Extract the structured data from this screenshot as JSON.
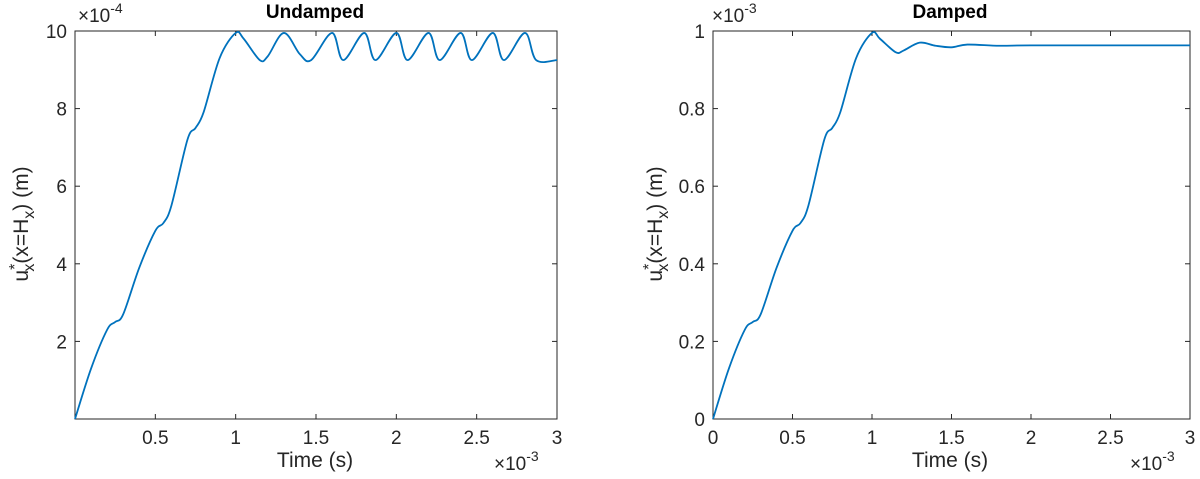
{
  "figure": {
    "colors": {
      "line": "#0072BD",
      "axes": "#262626",
      "tick": "#262626"
    }
  },
  "chart_data": [
    {
      "type": "line",
      "title": "Undamped",
      "xlabel": "Time (s)",
      "ylabel_parts": {
        "base": "u",
        "sup": "*",
        "sub": "x",
        "mid": "(x=H",
        "sub2": "x",
        "end": ") (m)"
      },
      "xlim": [
        0,
        0.003
      ],
      "ylim": [
        0,
        0.001
      ],
      "x_multiplier": "×10",
      "x_exponent": "-3",
      "y_multiplier": "×10",
      "y_exponent": "-4",
      "xticks": [
        0.0005,
        0.001,
        0.0015,
        0.002,
        0.0025,
        0.003
      ],
      "xtick_labels": [
        "0.5",
        "1",
        "1.5",
        "2",
        "2.5",
        "3"
      ],
      "yticks": [
        0.0002,
        0.0004,
        0.0006,
        0.0008,
        0.001
      ],
      "ytick_labels": [
        "2",
        "4",
        "6",
        "8",
        "10"
      ],
      "grid": false,
      "series": [
        {
          "x": [
            0,
            0.0001,
            0.0002,
            0.00025,
            0.0003,
            0.0004,
            0.0005,
            0.00055,
            0.0006,
            0.0007,
            0.00075,
            0.0008,
            0.0009,
            0.001,
            0.00105,
            0.00115,
            0.0012,
            0.0013,
            0.0014,
            0.00147,
            0.0016,
            0.00167,
            0.0018,
            0.00187,
            0.002,
            0.00207,
            0.0022,
            0.00227,
            0.0024,
            0.00247,
            0.0026,
            0.00267,
            0.0028,
            0.00287,
            0.003
          ],
          "y": [
            0,
            0.00013,
            0.00023,
            0.00025,
            0.00027,
            0.00039,
            0.000485,
            0.000505,
            0.00055,
            0.00072,
            0.00075,
            0.00079,
            0.00093,
            0.000995,
            0.00098,
            0.000925,
            0.000935,
            0.000995,
            0.00094,
            0.000925,
            0.000995,
            0.000925,
            0.000995,
            0.000925,
            0.000995,
            0.000925,
            0.000995,
            0.000925,
            0.000995,
            0.000925,
            0.000995,
            0.000925,
            0.000995,
            0.000925,
            0.000925
          ]
        }
      ]
    },
    {
      "type": "line",
      "title": "Damped",
      "xlabel": "Time (s)",
      "ylabel_parts": {
        "base": "u",
        "sup": "*",
        "sub": "x",
        "mid": "(x=H",
        "sub2": "x",
        "end": ") (m)"
      },
      "xlim": [
        0,
        0.003
      ],
      "ylim": [
        0,
        0.001
      ],
      "x_multiplier": "×10",
      "x_exponent": "-3",
      "y_multiplier": "×10",
      "y_exponent": "-3",
      "xticks": [
        0,
        0.0005,
        0.001,
        0.0015,
        0.002,
        0.0025,
        0.003
      ],
      "xtick_labels": [
        "0",
        "0.5",
        "1",
        "1.5",
        "2",
        "2.5",
        "3"
      ],
      "yticks": [
        0,
        0.0002,
        0.0004,
        0.0006,
        0.0008,
        0.001
      ],
      "ytick_labels": [
        "0",
        "0.2",
        "0.4",
        "0.6",
        "0.8",
        "1"
      ],
      "grid": false,
      "series": [
        {
          "x": [
            0,
            0.0001,
            0.0002,
            0.00025,
            0.0003,
            0.0004,
            0.0005,
            0.00055,
            0.0006,
            0.0007,
            0.00075,
            0.0008,
            0.0009,
            0.001,
            0.00105,
            0.00115,
            0.0012,
            0.0013,
            0.0014,
            0.0015,
            0.0016,
            0.0018,
            0.002,
            0.0025,
            0.003
          ],
          "y": [
            0,
            0.00013,
            0.00023,
            0.00025,
            0.00027,
            0.00039,
            0.000485,
            0.000505,
            0.00055,
            0.00072,
            0.00075,
            0.00079,
            0.00093,
            0.000995,
            0.00098,
            0.000945,
            0.00095,
            0.00097,
            0.000962,
            0.000958,
            0.000965,
            0.000962,
            0.000963,
            0.000963,
            0.000963
          ]
        }
      ]
    }
  ]
}
